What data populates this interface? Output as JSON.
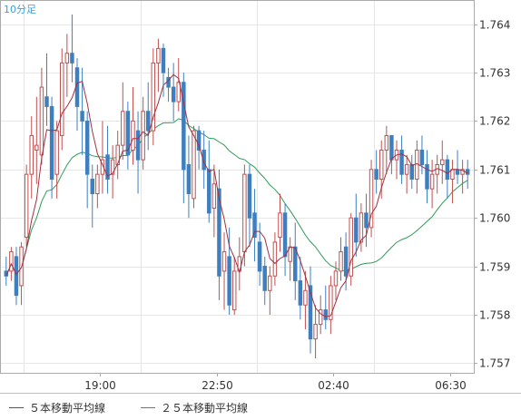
{
  "chart_data": {
    "type": "candlestick",
    "title": "10分足",
    "x_ticks": [
      "19:00",
      "22:50",
      "02:40",
      "06:30"
    ],
    "y_ticks": [
      "1.764",
      "1.763",
      "1.762",
      "1.761",
      "1.760",
      "1.759",
      "1.758",
      "1.757"
    ],
    "ylim": [
      1.7568,
      1.7645
    ],
    "grid": true,
    "colors": {
      "up": "#c05050",
      "down": "#3e7fc0",
      "ma5": "#a03040",
      "ma25": "#2e9c58",
      "grid": "#e6e6e6",
      "axis": "#aaaaaa"
    },
    "legend": [
      {
        "name": "５本移動平均線",
        "color": "#a03040"
      },
      {
        "name": "２５本移動平均線",
        "color": "#2e9c58"
      }
    ],
    "ohlc": [
      [
        1.7589,
        1.7592,
        1.7586,
        1.7588
      ],
      [
        1.7589,
        1.7594,
        1.7587,
        1.7593
      ],
      [
        1.7592,
        1.7594,
        1.7582,
        1.7584
      ],
      [
        1.7586,
        1.7595,
        1.7582,
        1.7594
      ],
      [
        1.7596,
        1.7611,
        1.7594,
        1.7609
      ],
      [
        1.7609,
        1.7621,
        1.7604,
        1.7617
      ],
      [
        1.7614,
        1.7625,
        1.7607,
        1.7615
      ],
      [
        1.7613,
        1.7631,
        1.7611,
        1.7627
      ],
      [
        1.7625,
        1.7634,
        1.7619,
        1.7623
      ],
      [
        1.7623,
        1.7625,
        1.7604,
        1.7608
      ],
      [
        1.7609,
        1.762,
        1.7604,
        1.7618
      ],
      [
        1.7617,
        1.7635,
        1.7614,
        1.7632
      ],
      [
        1.7632,
        1.7638,
        1.7625,
        1.7634
      ],
      [
        1.7634,
        1.7642,
        1.7628,
        1.7632
      ],
      [
        1.7631,
        1.7633,
        1.7618,
        1.7623
      ],
      [
        1.7622,
        1.7631,
        1.7613,
        1.762
      ],
      [
        1.762,
        1.7622,
        1.7602,
        1.7609
      ],
      [
        1.7608,
        1.7611,
        1.7598,
        1.7605
      ],
      [
        1.7605,
        1.7611,
        1.7602,
        1.7609
      ],
      [
        1.7609,
        1.762,
        1.7605,
        1.7612
      ],
      [
        1.7613,
        1.7619,
        1.7605,
        1.7608
      ],
      [
        1.7609,
        1.7615,
        1.7604,
        1.7612
      ],
      [
        1.7611,
        1.7618,
        1.7608,
        1.7615
      ],
      [
        1.7615,
        1.7628,
        1.7612,
        1.7622
      ],
      [
        1.7622,
        1.7624,
        1.761,
        1.7613
      ],
      [
        1.7614,
        1.7627,
        1.7611,
        1.762
      ],
      [
        1.7618,
        1.7622,
        1.7605,
        1.7612
      ],
      [
        1.7612,
        1.7625,
        1.761,
        1.7622
      ],
      [
        1.7622,
        1.7628,
        1.7614,
        1.7618
      ],
      [
        1.7618,
        1.7635,
        1.7615,
        1.7632
      ],
      [
        1.7632,
        1.7637,
        1.7626,
        1.7635
      ],
      [
        1.7635,
        1.7636,
        1.7625,
        1.763
      ],
      [
        1.7629,
        1.7631,
        1.7624,
        1.7627
      ],
      [
        1.7627,
        1.7632,
        1.762,
        1.7624
      ],
      [
        1.7624,
        1.7633,
        1.7622,
        1.7628
      ],
      [
        1.7628,
        1.763,
        1.7603,
        1.761
      ],
      [
        1.7611,
        1.7617,
        1.76,
        1.7605
      ],
      [
        1.7604,
        1.7619,
        1.7602,
        1.7618
      ],
      [
        1.7618,
        1.7619,
        1.761,
        1.7614
      ],
      [
        1.7614,
        1.7618,
        1.7606,
        1.761
      ],
      [
        1.761,
        1.7616,
        1.7599,
        1.7601
      ],
      [
        1.7602,
        1.7611,
        1.7596,
        1.7607
      ],
      [
        1.7606,
        1.761,
        1.7583,
        1.7588
      ],
      [
        1.7589,
        1.7597,
        1.7581,
        1.7593
      ],
      [
        1.7592,
        1.7598,
        1.758,
        1.7582
      ],
      [
        1.7581,
        1.7592,
        1.758,
        1.7589
      ],
      [
        1.7589,
        1.7596,
        1.7585,
        1.7592
      ],
      [
        1.7593,
        1.7611,
        1.759,
        1.7609
      ],
      [
        1.7609,
        1.7611,
        1.7594,
        1.76
      ],
      [
        1.7601,
        1.7606,
        1.7591,
        1.7596
      ],
      [
        1.7595,
        1.7599,
        1.7586,
        1.7589
      ],
      [
        1.759,
        1.7592,
        1.7582,
        1.7585
      ],
      [
        1.7585,
        1.759,
        1.758,
        1.7588
      ],
      [
        1.7588,
        1.7597,
        1.7586,
        1.7595
      ],
      [
        1.7596,
        1.7605,
        1.7593,
        1.7601
      ],
      [
        1.7601,
        1.7603,
        1.7588,
        1.7592
      ],
      [
        1.7591,
        1.7596,
        1.7587,
        1.7594
      ],
      [
        1.7594,
        1.7599,
        1.7583,
        1.7587
      ],
      [
        1.7587,
        1.7592,
        1.7579,
        1.7582
      ],
      [
        1.7582,
        1.7589,
        1.7577,
        1.7585
      ],
      [
        1.7586,
        1.759,
        1.7572,
        1.7575
      ],
      [
        1.7575,
        1.7582,
        1.7571,
        1.7578
      ],
      [
        1.7578,
        1.7584,
        1.7576,
        1.7581
      ],
      [
        1.7581,
        1.7586,
        1.7577,
        1.7579
      ],
      [
        1.7579,
        1.7588,
        1.7576,
        1.7586
      ],
      [
        1.7586,
        1.7591,
        1.7583,
        1.7589
      ],
      [
        1.7589,
        1.7596,
        1.7587,
        1.7593
      ],
      [
        1.7594,
        1.7597,
        1.7585,
        1.7588
      ],
      [
        1.7588,
        1.7601,
        1.7586,
        1.76
      ],
      [
        1.76,
        1.7605,
        1.7592,
        1.7595
      ],
      [
        1.7595,
        1.7603,
        1.7593,
        1.7601
      ],
      [
        1.7601,
        1.7605,
        1.7594,
        1.7598
      ],
      [
        1.7598,
        1.7612,
        1.7596,
        1.761
      ],
      [
        1.761,
        1.7614,
        1.7605,
        1.7608
      ],
      [
        1.7608,
        1.7616,
        1.7604,
        1.7614
      ],
      [
        1.7614,
        1.7619,
        1.7609,
        1.7617
      ],
      [
        1.7617,
        1.7617,
        1.7609,
        1.7612
      ],
      [
        1.7612,
        1.7616,
        1.7608,
        1.7614
      ],
      [
        1.7614,
        1.7617,
        1.7607,
        1.7609
      ],
      [
        1.7609,
        1.7613,
        1.7605,
        1.7611
      ],
      [
        1.7611,
        1.7613,
        1.7606,
        1.7608
      ],
      [
        1.7608,
        1.7616,
        1.7605,
        1.7614
      ],
      [
        1.7614,
        1.7617,
        1.7609,
        1.7611
      ],
      [
        1.7611,
        1.7614,
        1.7603,
        1.7606
      ],
      [
        1.7606,
        1.7612,
        1.7602,
        1.7609
      ],
      [
        1.7609,
        1.7613,
        1.7605,
        1.7611
      ],
      [
        1.7611,
        1.7616,
        1.7607,
        1.7612
      ],
      [
        1.7612,
        1.7613,
        1.7604,
        1.7608
      ],
      [
        1.7608,
        1.7612,
        1.7603,
        1.761
      ],
      [
        1.761,
        1.7614,
        1.7607,
        1.7609
      ],
      [
        1.7609,
        1.7612,
        1.7605,
        1.761
      ],
      [
        1.761,
        1.7612,
        1.7606,
        1.7609
      ]
    ]
  }
}
